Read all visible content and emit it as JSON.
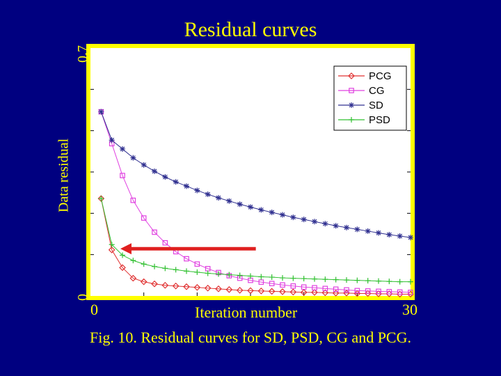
{
  "chart_data": {
    "type": "line",
    "title": "Residual curves",
    "xlabel": "Iteration number",
    "ylabel": "Data residual",
    "x_tick_labels": [
      "0",
      "30"
    ],
    "y_tick_labels": [
      "0",
      "0.7"
    ],
    "xlim": [
      0,
      30
    ],
    "ylim": [
      0,
      0.7
    ],
    "legend_position": "top-right",
    "x": [
      1,
      2,
      3,
      4,
      5,
      6,
      7,
      8,
      9,
      10,
      11,
      12,
      13,
      14,
      15,
      16,
      17,
      18,
      19,
      20,
      21,
      22,
      23,
      24,
      25,
      26,
      27,
      28,
      29,
      30
    ],
    "series": [
      {
        "name": "PCG",
        "color": "#e03030",
        "marker": "diamond",
        "values": [
          0.275,
          0.13,
          0.08,
          0.05,
          0.04,
          0.034,
          0.03,
          0.028,
          0.026,
          0.024,
          0.022,
          0.02,
          0.018,
          0.016,
          0.015,
          0.014,
          0.013,
          0.012,
          0.011,
          0.01,
          0.01,
          0.009,
          0.008,
          0.008,
          0.007,
          0.007,
          0.006,
          0.006,
          0.005,
          0.005
        ]
      },
      {
        "name": "CG",
        "color": "#e040e0",
        "marker": "square",
        "values": [
          0.52,
          0.43,
          0.34,
          0.27,
          0.22,
          0.18,
          0.15,
          0.125,
          0.105,
          0.09,
          0.077,
          0.066,
          0.057,
          0.05,
          0.044,
          0.039,
          0.035,
          0.031,
          0.028,
          0.025,
          0.023,
          0.021,
          0.019,
          0.017,
          0.015,
          0.014,
          0.013,
          0.012,
          0.011,
          0.01
        ]
      },
      {
        "name": "SD",
        "color": "#303090",
        "marker": "star",
        "values": [
          0.52,
          0.44,
          0.415,
          0.39,
          0.37,
          0.352,
          0.336,
          0.322,
          0.31,
          0.298,
          0.287,
          0.277,
          0.268,
          0.259,
          0.251,
          0.243,
          0.236,
          0.229,
          0.222,
          0.216,
          0.21,
          0.204,
          0.198,
          0.193,
          0.188,
          0.183,
          0.178,
          0.173,
          0.169,
          0.165
        ]
      },
      {
        "name": "PSD",
        "color": "#30c030",
        "marker": "plus",
        "values": [
          0.275,
          0.145,
          0.115,
          0.1,
          0.09,
          0.083,
          0.078,
          0.074,
          0.07,
          0.067,
          0.064,
          0.062,
          0.06,
          0.058,
          0.056,
          0.054,
          0.053,
          0.051,
          0.05,
          0.049,
          0.048,
          0.047,
          0.046,
          0.045,
          0.044,
          0.043,
          0.042,
          0.041,
          0.04,
          0.04
        ]
      }
    ]
  },
  "caption": "Fig. 10. Residual curves for SD, PSD, CG and PCG.",
  "colors": {
    "background": "#000080",
    "text": "#ffff00",
    "frame": "#ffff00",
    "plot_background": "#ffffff",
    "arrow": "#e02020"
  }
}
